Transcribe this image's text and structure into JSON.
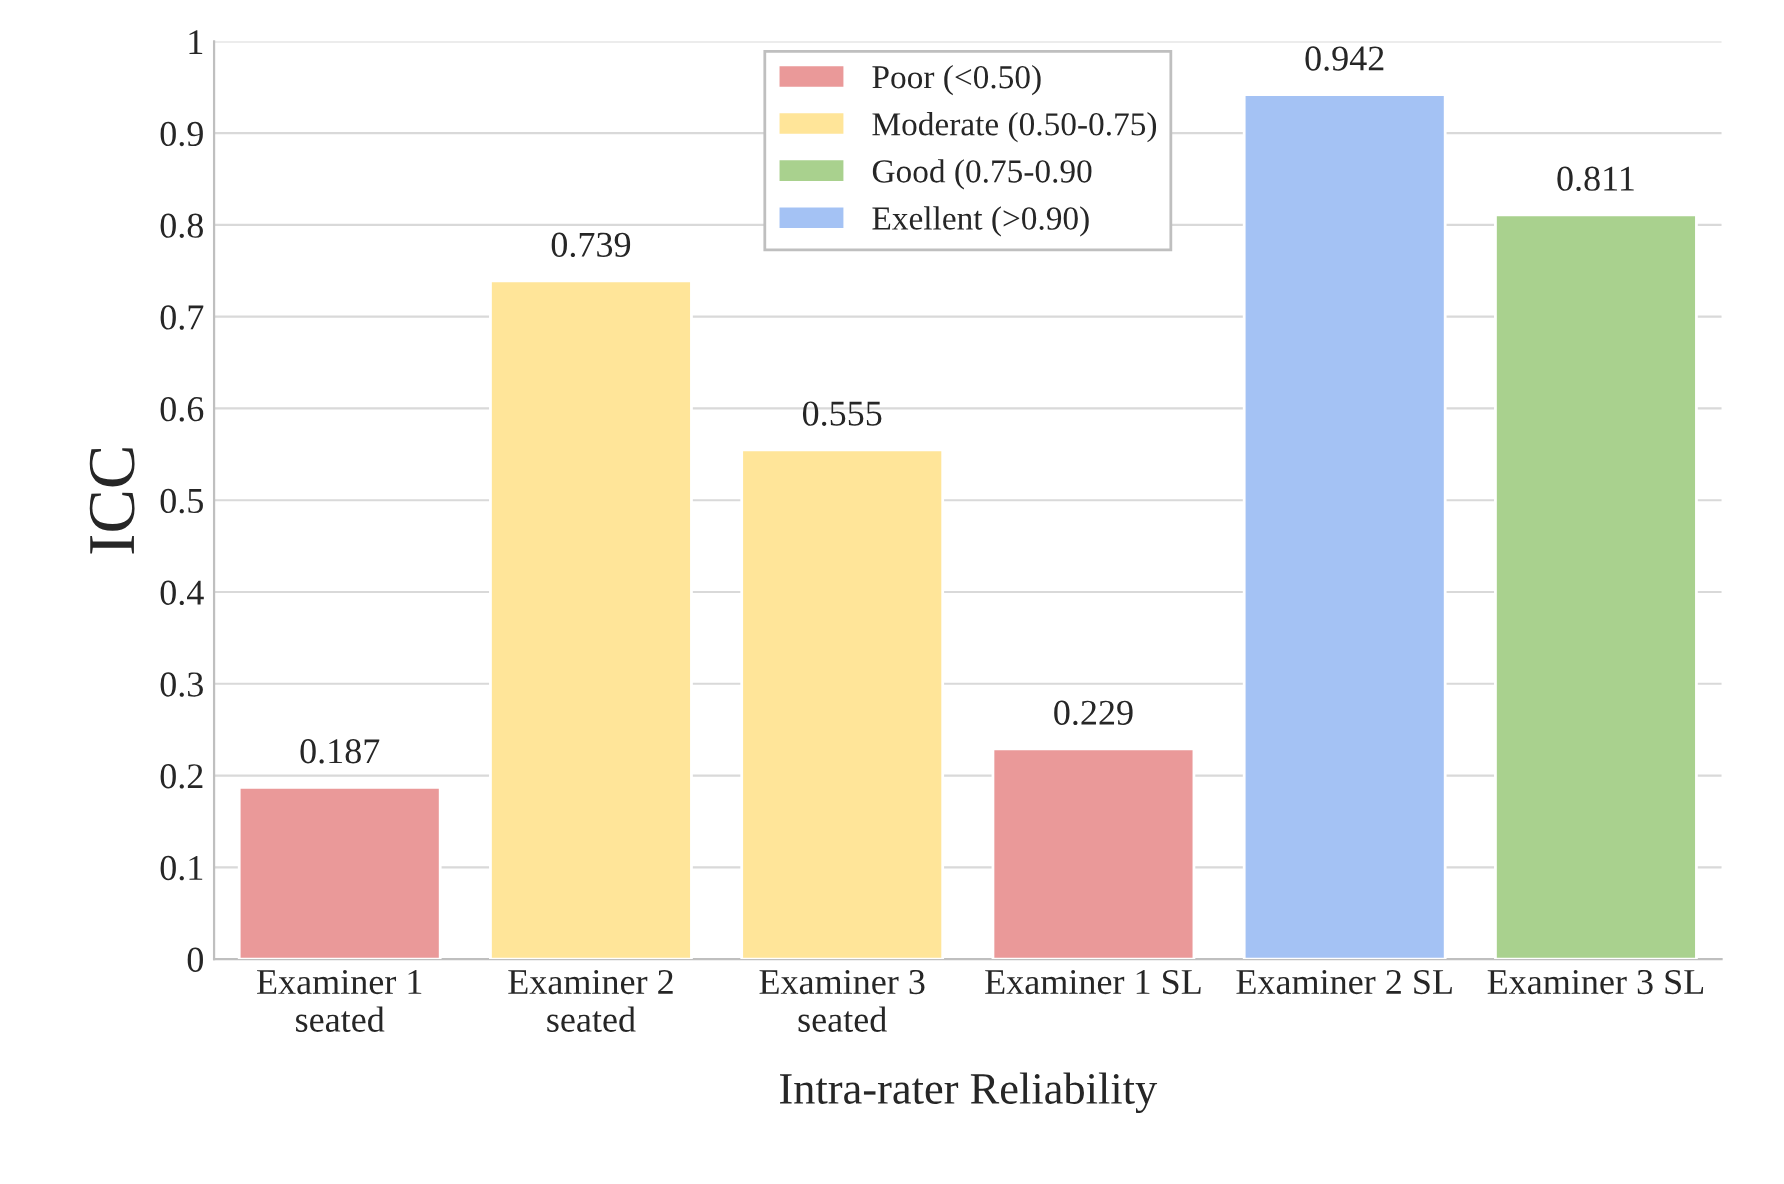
{
  "chart_data": {
    "type": "bar",
    "xlabel": "Intra-rater Reliability",
    "ylabel": "ICC",
    "categories": [
      "Examiner 1\nseated",
      "Examiner 2\nseated",
      "Examiner 3\nseated",
      "Examiner 1 SL",
      "Examiner 2 SL",
      "Examiner 3 SL"
    ],
    "series": [
      {
        "name": "Poor (<0.50)",
        "color": "#ea9999",
        "values": [
          0.187,
          null,
          null,
          0.229,
          null,
          null
        ]
      },
      {
        "name": "Moderate (0.50-0.75)",
        "color": "#ffe599",
        "values": [
          null,
          0.739,
          0.555,
          null,
          null,
          null
        ]
      },
      {
        "name": "Good (0.75-0.90",
        "color": "#a9d18e",
        "values": [
          null,
          null,
          null,
          null,
          null,
          0.811
        ]
      },
      {
        "name": "Exellent (>0.90)",
        "color": "#a4c2f4",
        "values": [
          null,
          null,
          null,
          null,
          0.942,
          null
        ]
      }
    ],
    "ylim": [
      0,
      1
    ],
    "yticks": [
      0,
      0.1,
      0.2,
      0.3,
      0.4,
      0.5,
      0.6,
      0.7,
      0.8,
      0.9,
      1
    ],
    "grid": "y",
    "legend": "top",
    "data_labels": true
  }
}
